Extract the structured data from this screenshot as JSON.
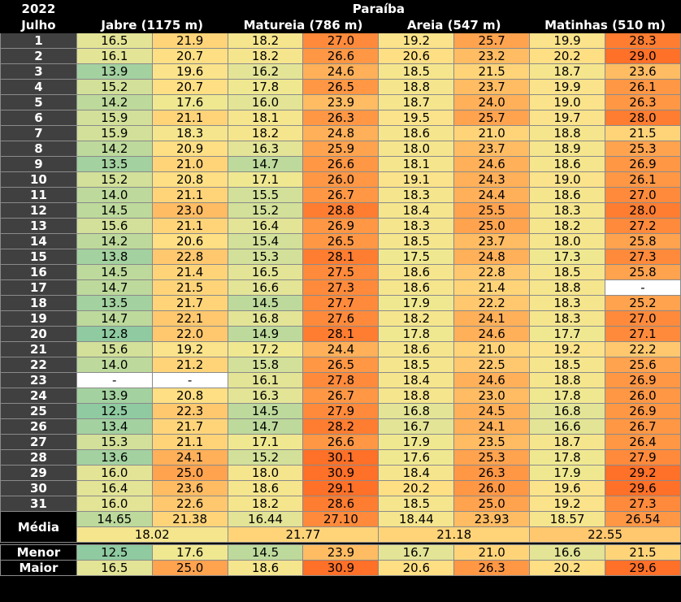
{
  "header": {
    "year": "2022",
    "month": "Julho",
    "state": "Paraíba",
    "stations": [
      "Jabre (1175 m)",
      "Matureia (786 m)",
      "Areia (547 m)",
      "Matinhas (510 m)"
    ]
  },
  "colors": {
    "missing": "#ffffff",
    "scale": [
      {
        "max": 13.0,
        "color": "#8fcaa0"
      },
      {
        "max": 14.0,
        "color": "#a3d1a0"
      },
      {
        "max": 15.0,
        "color": "#bdd99b"
      },
      {
        "max": 16.0,
        "color": "#d2e099"
      },
      {
        "max": 17.0,
        "color": "#e3e496"
      },
      {
        "max": 18.0,
        "color": "#efe891"
      },
      {
        "max": 19.0,
        "color": "#f5e58d"
      },
      {
        "max": 20.0,
        "color": "#fae38a"
      },
      {
        "max": 21.0,
        "color": "#ffdf83"
      },
      {
        "max": 22.0,
        "color": "#ffd479"
      },
      {
        "max": 23.0,
        "color": "#ffc86e"
      },
      {
        "max": 24.0,
        "color": "#ffbc63"
      },
      {
        "max": 25.0,
        "color": "#ffb059"
      },
      {
        "max": 26.0,
        "color": "#ffa34f"
      },
      {
        "max": 27.0,
        "color": "#ff9745"
      },
      {
        "max": 28.0,
        "color": "#ff8a3b"
      },
      {
        "max": 29.0,
        "color": "#ff7d31"
      },
      {
        "max": 99.0,
        "color": "#ff7028"
      }
    ]
  },
  "rows": [
    {
      "day": "1",
      "v": [
        "16.5",
        "21.9",
        "18.2",
        "27.0",
        "19.2",
        "25.7",
        "19.9",
        "28.3"
      ]
    },
    {
      "day": "2",
      "v": [
        "16.1",
        "20.7",
        "18.2",
        "26.6",
        "20.6",
        "23.2",
        "20.2",
        "29.0"
      ]
    },
    {
      "day": "3",
      "v": [
        "13.9",
        "19.6",
        "16.2",
        "24.6",
        "18.5",
        "21.5",
        "18.7",
        "23.6"
      ]
    },
    {
      "day": "4",
      "v": [
        "15.2",
        "20.7",
        "17.8",
        "26.5",
        "18.8",
        "23.7",
        "19.9",
        "26.1"
      ]
    },
    {
      "day": "5",
      "v": [
        "14.2",
        "17.6",
        "16.0",
        "23.9",
        "18.7",
        "24.0",
        "19.0",
        "26.3"
      ]
    },
    {
      "day": "6",
      "v": [
        "15.9",
        "21.1",
        "18.1",
        "26.3",
        "19.5",
        "25.7",
        "19.7",
        "28.0"
      ]
    },
    {
      "day": "7",
      "v": [
        "15.9",
        "18.3",
        "18.2",
        "24.8",
        "18.6",
        "21.0",
        "18.8",
        "21.5"
      ]
    },
    {
      "day": "8",
      "v": [
        "14.2",
        "20.9",
        "16.3",
        "25.9",
        "18.0",
        "23.7",
        "18.9",
        "25.3"
      ]
    },
    {
      "day": "9",
      "v": [
        "13.5",
        "21.0",
        "14.7",
        "26.6",
        "18.1",
        "24.6",
        "18.6",
        "26.9"
      ]
    },
    {
      "day": "10",
      "v": [
        "15.2",
        "20.8",
        "17.1",
        "26.0",
        "19.1",
        "24.3",
        "19.0",
        "26.1"
      ]
    },
    {
      "day": "11",
      "v": [
        "14.0",
        "21.1",
        "15.5",
        "26.7",
        "18.3",
        "24.4",
        "18.6",
        "27.0"
      ]
    },
    {
      "day": "12",
      "v": [
        "14.5",
        "23.0",
        "15.2",
        "28.8",
        "18.4",
        "25.5",
        "18.3",
        "28.0"
      ]
    },
    {
      "day": "13",
      "v": [
        "15.6",
        "21.1",
        "16.4",
        "26.9",
        "18.3",
        "25.0",
        "18.2",
        "27.2"
      ]
    },
    {
      "day": "14",
      "v": [
        "14.2",
        "20.6",
        "15.4",
        "26.5",
        "18.5",
        "23.7",
        "18.0",
        "25.8"
      ]
    },
    {
      "day": "15",
      "v": [
        "13.8",
        "22.8",
        "15.3",
        "28.1",
        "17.5",
        "24.8",
        "17.3",
        "27.3"
      ]
    },
    {
      "day": "16",
      "v": [
        "14.5",
        "21.4",
        "16.5",
        "27.5",
        "18.6",
        "22.8",
        "18.5",
        "25.8"
      ]
    },
    {
      "day": "17",
      "v": [
        "14.7",
        "21.5",
        "16.6",
        "27.3",
        "18.6",
        "21.4",
        "18.8",
        "-"
      ]
    },
    {
      "day": "18",
      "v": [
        "13.5",
        "21.7",
        "14.5",
        "27.7",
        "17.9",
        "22.2",
        "18.3",
        "25.2"
      ]
    },
    {
      "day": "19",
      "v": [
        "14.7",
        "22.1",
        "16.8",
        "27.6",
        "18.2",
        "24.1",
        "18.3",
        "27.0"
      ]
    },
    {
      "day": "20",
      "v": [
        "12.8",
        "22.0",
        "14.9",
        "28.1",
        "17.8",
        "24.6",
        "17.7",
        "27.1"
      ]
    },
    {
      "day": "21",
      "v": [
        "15.6",
        "19.2",
        "17.2",
        "24.4",
        "18.6",
        "21.0",
        "19.2",
        "22.2"
      ]
    },
    {
      "day": "22",
      "v": [
        "14.0",
        "21.2",
        "15.8",
        "26.5",
        "18.5",
        "22.5",
        "18.5",
        "25.6"
      ]
    },
    {
      "day": "23",
      "v": [
        "-",
        "-",
        "16.1",
        "27.8",
        "18.4",
        "24.6",
        "18.8",
        "26.9"
      ]
    },
    {
      "day": "24",
      "v": [
        "13.9",
        "20.8",
        "16.3",
        "26.7",
        "18.8",
        "23.0",
        "17.8",
        "26.0"
      ]
    },
    {
      "day": "25",
      "v": [
        "12.5",
        "22.3",
        "14.5",
        "27.9",
        "16.8",
        "24.5",
        "16.8",
        "26.9"
      ]
    },
    {
      "day": "26",
      "v": [
        "13.4",
        "21.7",
        "14.7",
        "28.2",
        "16.7",
        "24.1",
        "16.6",
        "26.7"
      ]
    },
    {
      "day": "27",
      "v": [
        "15.3",
        "21.1",
        "17.1",
        "26.6",
        "17.9",
        "23.5",
        "18.7",
        "26.4"
      ]
    },
    {
      "day": "28",
      "v": [
        "13.6",
        "24.1",
        "15.2",
        "30.1",
        "17.6",
        "25.3",
        "17.8",
        "27.9"
      ]
    },
    {
      "day": "29",
      "v": [
        "16.0",
        "25.0",
        "18.0",
        "30.9",
        "18.4",
        "26.3",
        "17.9",
        "29.2"
      ]
    },
    {
      "day": "30",
      "v": [
        "16.4",
        "23.6",
        "18.6",
        "29.1",
        "20.2",
        "26.0",
        "19.6",
        "29.6"
      ]
    },
    {
      "day": "31",
      "v": [
        "16.0",
        "22.6",
        "18.2",
        "28.6",
        "18.5",
        "25.0",
        "19.2",
        "27.3"
      ]
    }
  ],
  "stats": {
    "media_label": "Média",
    "media": [
      "14.65",
      "21.38",
      "16.44",
      "27.10",
      "18.44",
      "23.93",
      "18.57",
      "26.54"
    ],
    "media_overall": [
      "18.02",
      "21.77",
      "21.18",
      "22.55"
    ],
    "menor_label": "Menor",
    "menor": [
      "12.5",
      "17.6",
      "14.5",
      "23.9",
      "16.7",
      "21.0",
      "16.6",
      "21.5"
    ],
    "maior_label": "Maior",
    "maior": [
      "16.5",
      "25.0",
      "18.6",
      "30.9",
      "20.6",
      "26.3",
      "20.2",
      "29.6"
    ]
  }
}
